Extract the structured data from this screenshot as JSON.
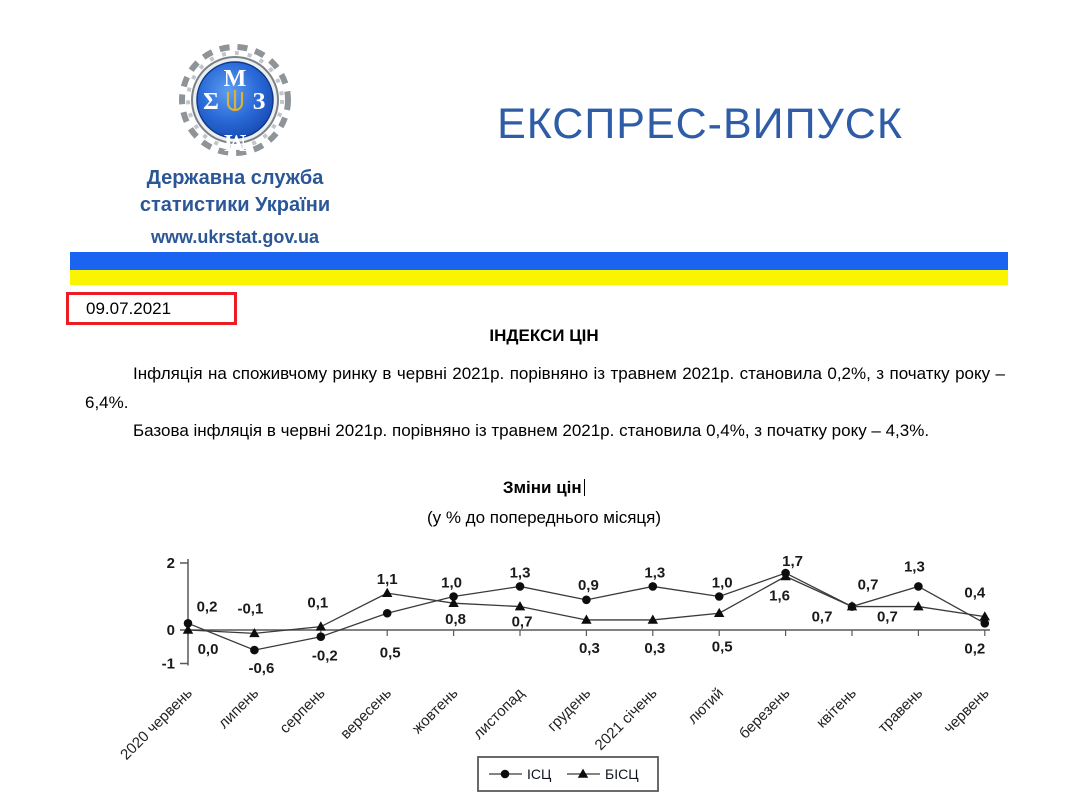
{
  "header": {
    "org_name_line1": "Державна служба",
    "org_name_line2": "статистики України",
    "website": "www.ukrstat.gov.ua",
    "title": "ЕКСПРЕС-ВИПУСК",
    "brand_blue": "#2B5797",
    "title_blue": "#2E5CA6",
    "flag_blue": "#1B64F2",
    "flag_yellow": "#FAF400"
  },
  "date_stamp": "09.07.2021",
  "date_highlight_color": "#EC1C24",
  "document": {
    "heading": "ІНДЕКСИ ЦІН",
    "paragraph1": "Інфляція на споживчому ринку в червні 2021р. порівняно із травнем 2021р. становила 0,2%, з початку року – 6,4%.",
    "paragraph2": "Базова інфляція в червні 2021р. порівняно із травнем 2021р. становила 0,4%, з початку року – 4,3%."
  },
  "chart_data": {
    "type": "line",
    "title": "Зміни цін",
    "subtitle": "(у % до попереднього місяця)",
    "categories": [
      "2020 червень",
      "липень",
      "серпень",
      "вересень",
      "жовтень",
      "листопад",
      "грудень",
      "2021 січень",
      "лютий",
      "березень",
      "квітень",
      "травень",
      "червень"
    ],
    "series": [
      {
        "name": "ІСЦ",
        "marker": "circle",
        "values": [
          0.2,
          -0.6,
          -0.2,
          0.5,
          1.0,
          1.3,
          0.9,
          1.3,
          1.0,
          1.7,
          0.7,
          1.3,
          0.2
        ]
      },
      {
        "name": "БІСЦ",
        "marker": "triangle",
        "values": [
          0.0,
          -0.1,
          0.1,
          1.1,
          0.8,
          0.7,
          0.3,
          0.3,
          0.5,
          1.6,
          0.7,
          0.7,
          0.4
        ]
      }
    ],
    "label_offsets": [
      [
        [
          19,
          -12
        ],
        [
          7,
          23
        ],
        [
          4,
          24
        ],
        [
          3,
          44
        ],
        [
          -2,
          -9
        ],
        [
          0,
          -9
        ],
        [
          2,
          -10
        ],
        [
          2,
          -9
        ],
        [
          3,
          -9
        ],
        [
          7,
          -7
        ],
        [
          16,
          -17
        ],
        [
          -4,
          -15
        ],
        [
          -10,
          30
        ]
      ],
      [
        [
          20,
          24
        ],
        [
          -4,
          -20
        ],
        [
          -3,
          -19
        ],
        [
          0,
          -9
        ],
        [
          2,
          21
        ],
        [
          2,
          20
        ],
        [
          3,
          33
        ],
        [
          2,
          33
        ],
        [
          3,
          38
        ],
        [
          -6,
          24
        ],
        [
          -30,
          15
        ],
        [
          -31,
          15
        ],
        [
          -10,
          -19
        ]
      ]
    ],
    "yticks": [
      2,
      0,
      -1
    ],
    "ylim": [
      -1,
      2
    ],
    "decimal_separator": ",",
    "grid": "off",
    "legend_position": "bottom",
    "line_color": "#3a3a3a",
    "marker_color": "#0d0d0d",
    "axis_color": "#595959"
  }
}
